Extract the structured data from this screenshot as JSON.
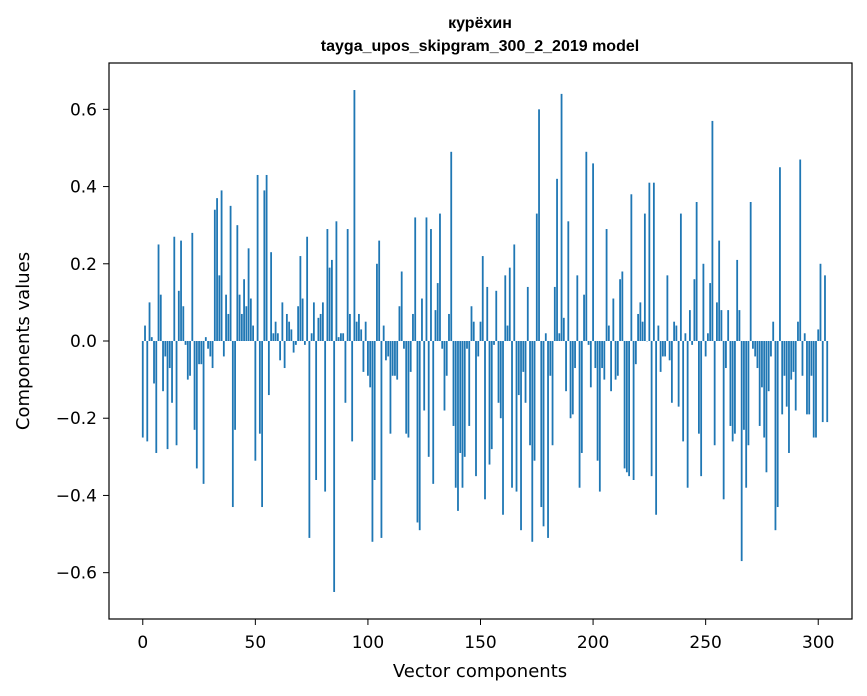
{
  "chart_data": {
    "type": "bar",
    "title": "курёхин",
    "subtitle": "tayga_upos_skipgram_300_2_2019 model",
    "xlabel": "Vector components",
    "ylabel": "Components values",
    "xlim": [
      -15,
      315
    ],
    "ylim": [
      -0.72,
      0.72
    ],
    "xticks": [
      0,
      50,
      100,
      150,
      200,
      250,
      300
    ],
    "yticks": [
      -0.6,
      -0.4,
      -0.2,
      0.0,
      0.2,
      0.4,
      0.6
    ],
    "ytick_labels": [
      "−0.6",
      "−0.4",
      "−0.2",
      "0.0",
      "0.2",
      "0.4",
      "0.6"
    ],
    "bar_color": "#1f77b4",
    "values": [
      -0.25,
      0.04,
      -0.26,
      0.1,
      0.01,
      -0.11,
      -0.29,
      0.25,
      0.12,
      -0.13,
      -0.04,
      -0.28,
      -0.07,
      -0.16,
      0.27,
      -0.27,
      0.13,
      0.26,
      0.09,
      -0.01,
      -0.1,
      -0.09,
      0.28,
      -0.23,
      -0.33,
      -0.06,
      -0.06,
      -0.37,
      0.01,
      -0.02,
      -0.04,
      -0.07,
      0.34,
      0.37,
      0.17,
      0.39,
      -0.04,
      0.12,
      0.07,
      0.35,
      -0.43,
      -0.23,
      0.3,
      0.12,
      0.07,
      0.16,
      0.09,
      0.24,
      0.11,
      0.04,
      -0.31,
      0.43,
      -0.24,
      -0.43,
      0.39,
      0.43,
      -0.14,
      0.23,
      0.02,
      0.05,
      0.02,
      -0.05,
      0.1,
      -0.07,
      0.07,
      0.05,
      0.03,
      -0.03,
      -0.01,
      0.09,
      0.22,
      0.11,
      -0.01,
      0.27,
      -0.51,
      0.02,
      0.1,
      -0.36,
      0.06,
      0.07,
      0.1,
      -0.39,
      0.29,
      0.19,
      0.21,
      -0.65,
      0.31,
      0.01,
      0.02,
      0.02,
      -0.16,
      0.29,
      0.07,
      -0.26,
      0.65,
      0.05,
      0.07,
      0.03,
      -0.08,
      0.05,
      -0.09,
      -0.12,
      -0.52,
      -0.36,
      0.2,
      0.26,
      -0.51,
      0.04,
      -0.05,
      -0.04,
      -0.24,
      -0.09,
      -0.09,
      -0.1,
      0.09,
      0.18,
      -0.02,
      -0.24,
      -0.25,
      -0.08,
      0.07,
      0.32,
      -0.47,
      -0.49,
      0.11,
      -0.18,
      0.32,
      -0.3,
      0.29,
      -0.37,
      0.08,
      0.15,
      0.33,
      -0.02,
      -0.18,
      -0.09,
      0.07,
      0.49,
      -0.22,
      -0.38,
      -0.44,
      -0.29,
      -0.38,
      -0.3,
      -0.02,
      -0.22,
      0.09,
      0.05,
      -0.35,
      -0.04,
      0.05,
      0.22,
      -0.41,
      0.14,
      -0.32,
      -0.28,
      -0.01,
      0.13,
      -0.16,
      -0.2,
      -0.45,
      0.17,
      0.04,
      0.19,
      -0.38,
      0.25,
      -0.39,
      -0.14,
      -0.49,
      -0.08,
      -0.16,
      0.14,
      -0.27,
      -0.52,
      -0.31,
      0.33,
      0.6,
      -0.43,
      -0.48,
      0.02,
      -0.51,
      -0.09,
      -0.27,
      0.14,
      0.42,
      0.02,
      0.64,
      0.06,
      -0.13,
      0.31,
      -0.2,
      -0.19,
      -0.07,
      0.17,
      -0.38,
      -0.29,
      0.12,
      0.49,
      -0.01,
      -0.12,
      0.46,
      -0.07,
      -0.31,
      -0.39,
      -0.07,
      -0.1,
      0.29,
      0.04,
      -0.13,
      0.11,
      -0.1,
      -0.09,
      0.16,
      0.18,
      -0.33,
      -0.34,
      -0.35,
      0.38,
      -0.36,
      -0.06,
      0.07,
      0.1,
      0.05,
      0.33,
      0.0,
      0.41,
      -0.35,
      0.41,
      -0.45,
      0.04,
      -0.08,
      -0.04,
      -0.04,
      0.17,
      -0.05,
      -0.16,
      0.05,
      0.04,
      -0.17,
      0.33,
      -0.26,
      0.02,
      -0.38,
      0.08,
      -0.01,
      0.16,
      0.36,
      -0.24,
      -0.35,
      0.2,
      -0.04,
      0.02,
      0.15,
      0.57,
      -0.27,
      0.1,
      0.26,
      0.08,
      -0.41,
      -0.07,
      0.08,
      -0.22,
      -0.26,
      -0.24,
      0.21,
      0.08,
      -0.57,
      -0.23,
      -0.38,
      -0.27,
      0.36,
      -0.02,
      -0.04,
      -0.07,
      -0.22,
      -0.12,
      -0.25,
      -0.34,
      -0.13,
      -0.04,
      0.05,
      -0.49,
      -0.43,
      0.45,
      -0.19,
      -0.09,
      -0.17,
      -0.29,
      -0.1,
      -0.08,
      -0.18,
      0.05,
      0.47,
      -0.09,
      0.02,
      -0.19,
      -0.19,
      -0.09,
      -0.25,
      -0.25,
      0.03,
      0.2,
      -0.21,
      0.17,
      -0.21
    ]
  }
}
